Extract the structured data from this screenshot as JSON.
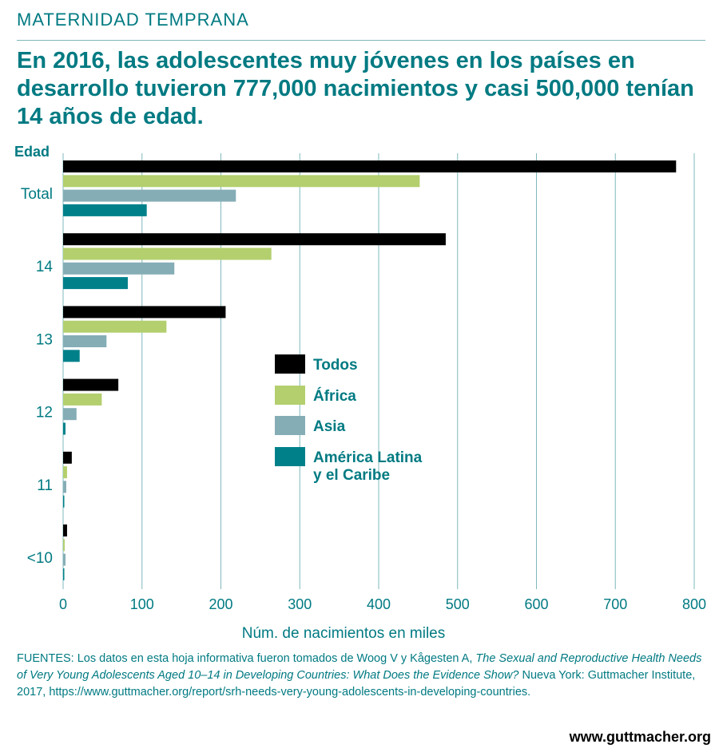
{
  "header": {
    "kicker": "MATERNIDAD TEMPRANA",
    "headline": "En 2016, las adolescentes muy jóvenes en los países en desarrollo tuvieron 777,000 nacimientos y casi 500,000 tenían 14 años de edad."
  },
  "chart_data": {
    "type": "bar",
    "orientation": "horizontal",
    "y_title": "Edad",
    "categories": [
      "Total",
      "14",
      "13",
      "12",
      "11",
      "<10"
    ],
    "series": [
      {
        "name": "Todos",
        "color": "#000000",
        "values": [
          777,
          485,
          206,
          70,
          11,
          5
        ]
      },
      {
        "name": "África",
        "color": "#b3cf6e",
        "values": [
          452,
          264,
          131,
          49,
          5,
          2
        ]
      },
      {
        "name": "Asia",
        "color": "#85adb6",
        "values": [
          219,
          141,
          55,
          17,
          4,
          3
        ]
      },
      {
        "name": "América Latina y el Caribe",
        "color": "#00818a",
        "values": [
          106,
          82,
          21,
          3,
          1,
          0.5
        ]
      }
    ],
    "xlabel": "Núm. de nacimientos en miles",
    "xlim": [
      0,
      800
    ],
    "xticks": [
      0,
      100,
      200,
      300,
      400,
      500,
      600,
      700,
      800
    ],
    "grid": "vertical",
    "legend_position": "center"
  },
  "legend": {
    "todos": "Todos",
    "africa": "África",
    "asia": "Asia",
    "latam_line1": "América Latina",
    "latam_line2": "y el Caribe"
  },
  "source": {
    "part1": "FUENTES: Los datos en esta hoja informativa fueron tomados de Woog V y Kågesten A, ",
    "title_italic": "The Sexual and Reproductive Health Needs of Very Young Adolescents Aged 10–14 in Developing Countries: What Does the Evidence Show?",
    "part2": " Nueva York: Guttmacher Institute, 2017, https://www.guttmacher.org/report/srh-needs-very-young-adolescents-in-developing-countries."
  },
  "footer": {
    "site": "www.guttmacher.org"
  }
}
